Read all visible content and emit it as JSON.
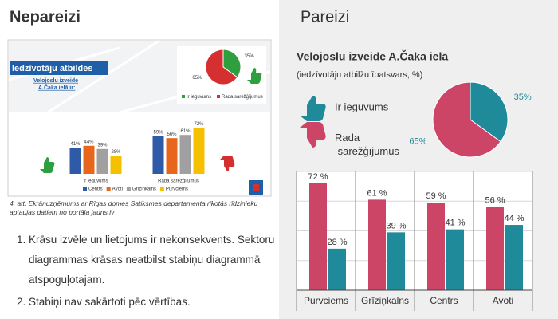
{
  "left": {
    "heading": "Nepareizi",
    "figure": {
      "title": "Iedzīvotāju atbildes",
      "subtitle_lines": [
        "Velojoslu izveide",
        "A.Čaka ielā ir:"
      ],
      "caption": "4. att. Ekrānuzņēmums ar Rīgas domes Satiksmes departamenta rīkotās rīdzinieku aptaujas datiem no portāla jauns.lv"
    },
    "notes": [
      "Krāsu izvēle un lietojums ir nekonsekvents. Sektoru diagrammas krāsas neatbilst stabiņu diagrammā atspoguļotajam.",
      "Stabiņi nav sakārtoti pēc vērtības."
    ]
  },
  "right": {
    "heading": "Pareizi"
  },
  "chart_data": [
    {
      "type": "pie",
      "categories": [
        "Ir ieguvums",
        "Rada sarežģījumus"
      ],
      "values": [
        35,
        65
      ],
      "value_labels": [
        "35%",
        "65%"
      ],
      "colors": [
        "#2e9e3e",
        "#d62f2f"
      ]
    },
    {
      "type": "bar",
      "categories": [
        "Ir ieguvums",
        "Rada sarežģījumus"
      ],
      "ylim": [
        0,
        80
      ],
      "series": [
        {
          "name": "Centrs",
          "color": "#2e5aa8",
          "values": [
            41,
            59
          ],
          "value_labels": [
            "41%",
            "59%"
          ]
        },
        {
          "name": "Avoti",
          "color": "#e8661c",
          "values": [
            44,
            56
          ],
          "value_labels": [
            "44%",
            "56%"
          ]
        },
        {
          "name": "Grīziņkalns",
          "color": "#a0a0a0",
          "values": [
            39,
            61
          ],
          "value_labels": [
            "39%",
            "61%"
          ]
        },
        {
          "name": "Purvciems",
          "color": "#f5c000",
          "values": [
            28,
            72
          ],
          "value_labels": [
            "28%",
            "72%"
          ]
        }
      ]
    },
    {
      "type": "pie",
      "title": "Velojoslu izveide A.Čaka ielā",
      "subtitle": "(iedzīvotāju atbilžu īpatsvars, %)",
      "categories": [
        "Ir ieguvums",
        "Rada sarežģījumus"
      ],
      "values": [
        35,
        65
      ],
      "value_labels": [
        "35%",
        "65%"
      ],
      "colors": [
        "#1f8a9a",
        "#cc4466"
      ]
    },
    {
      "type": "bar",
      "categories": [
        "Purvciems",
        "Grīziņkalns",
        "Centrs",
        "Avoti"
      ],
      "ylim": [
        0,
        80
      ],
      "yticks": [
        0,
        20,
        40,
        60,
        80
      ],
      "grid": true,
      "series": [
        {
          "color": "#cc4466",
          "values": [
            72,
            61,
            59,
            56
          ],
          "value_labels": [
            "72 %",
            "61 %",
            "59 %",
            "56 %"
          ]
        },
        {
          "color": "#1f8a9a",
          "values": [
            28,
            39,
            41,
            44
          ],
          "value_labels": [
            "28 %",
            "39 %",
            "41 %",
            "44 %"
          ]
        }
      ]
    }
  ]
}
